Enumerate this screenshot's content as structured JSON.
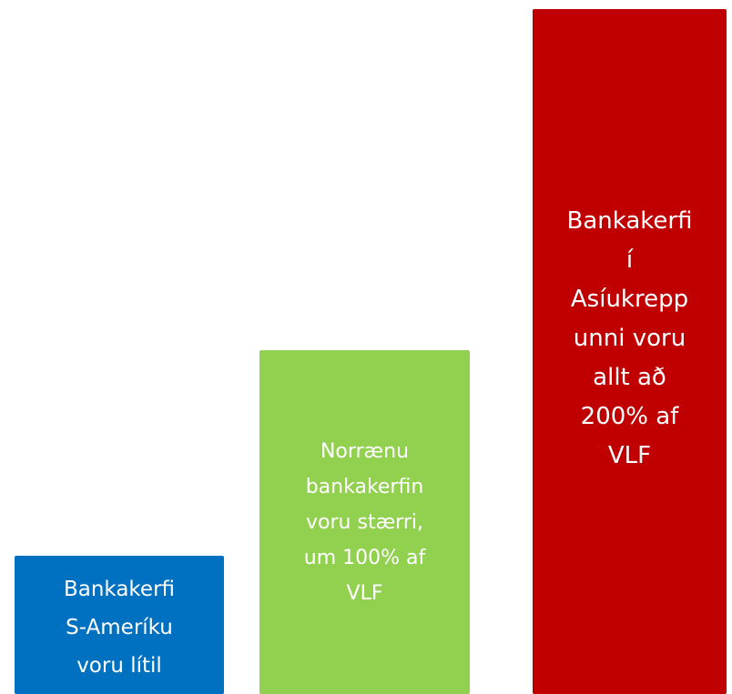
{
  "boxes": [
    {
      "lines": [
        "Bankakerfi",
        "S-Ameríku",
        "voru lítil"
      ]
    },
    {
      "lines": [
        "Norrænu",
        "bankakerfin",
        "voru stærri,",
        "um 100% af",
        "VLF"
      ]
    },
    {
      "lines": [
        "Bankakerfi",
        "í",
        "Asíukrepp",
        "unni voru",
        "allt að",
        "200% af",
        "VLF"
      ]
    }
  ]
}
